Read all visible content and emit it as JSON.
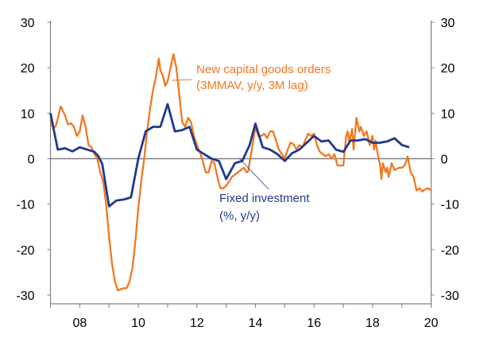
{
  "chart_data": {
    "type": "line",
    "title": "",
    "xlabel": "",
    "ylabel": "",
    "xlim": [
      2007,
      2020
    ],
    "ylim": [
      -30,
      30
    ],
    "y_right_axis": {
      "ylim": [
        -30,
        30
      ]
    },
    "grid": false,
    "x_ticks": [
      2008,
      2010,
      2012,
      2014,
      2016,
      2018,
      2020
    ],
    "x_tick_labels": [
      "08",
      "10",
      "12",
      "14",
      "16",
      "18",
      "20"
    ],
    "y_ticks": [
      -30,
      -20,
      -10,
      0,
      10,
      20,
      30
    ],
    "y_tick_labels": [
      "-30",
      "-20",
      "-10",
      "0",
      "10",
      "20",
      "30"
    ],
    "colors": {
      "orders": "#F07820",
      "investment": "#1F3A8C",
      "zero_line": "#808080"
    },
    "series": [
      {
        "name": "New capital goods orders (3MMAV, y/y, 3M lag)",
        "label_lines": [
          "New capital goods orders",
          "(3MMAV, y/y, 3M lag)"
        ],
        "color": "#F07820",
        "x": [
          2007.0,
          2007.1,
          2007.2,
          2007.35,
          2007.5,
          2007.6,
          2007.7,
          2007.8,
          2007.9,
          2008.0,
          2008.1,
          2008.2,
          2008.3,
          2008.4,
          2008.5,
          2008.6,
          2008.7,
          2008.8,
          2008.9,
          2009.0,
          2009.1,
          2009.2,
          2009.3,
          2009.4,
          2009.5,
          2009.6,
          2009.7,
          2009.8,
          2009.9,
          2010.0,
          2010.1,
          2010.2,
          2010.3,
          2010.4,
          2010.5,
          2010.6,
          2010.7,
          2010.75,
          2010.85,
          2010.92,
          2011.0,
          2011.1,
          2011.2,
          2011.3,
          2011.4,
          2011.5,
          2011.6,
          2011.7,
          2011.8,
          2011.9,
          2012.0,
          2012.1,
          2012.2,
          2012.3,
          2012.4,
          2012.5,
          2012.6,
          2012.7,
          2012.8,
          2012.9,
          2013.0,
          2013.2,
          2013.4,
          2013.5,
          2013.6,
          2013.7,
          2013.75,
          2013.85,
          2013.9,
          2014.0,
          2014.1,
          2014.2,
          2014.3,
          2014.4,
          2014.5,
          2014.6,
          2014.7,
          2014.8,
          2014.9,
          2015.0,
          2015.1,
          2015.2,
          2015.3,
          2015.4,
          2015.5,
          2015.6,
          2015.7,
          2015.8,
          2015.9,
          2016.0,
          2016.1,
          2016.2,
          2016.3,
          2016.4,
          2016.5,
          2016.6,
          2016.7,
          2016.8,
          2016.9,
          2017.0,
          2017.1,
          2017.15,
          2017.2,
          2017.3,
          2017.35,
          2017.45,
          2017.55,
          2017.6,
          2017.7,
          2017.8,
          2017.9,
          2018.0,
          2018.05,
          2018.1,
          2018.2,
          2018.25,
          2018.3,
          2018.35,
          2018.45,
          2018.5,
          2018.55,
          2018.65,
          2018.75,
          2018.9,
          2019.0,
          2019.1,
          2019.2,
          2019.3,
          2019.4,
          2019.5,
          2019.6,
          2019.7,
          2019.8,
          2019.9,
          2020.0
        ],
        "values": [
          8.5,
          6.5,
          7.5,
          11.5,
          9.5,
          7.5,
          7.8,
          7,
          5,
          6,
          9.5,
          7,
          3,
          2.5,
          1,
          0,
          -3,
          -5,
          -10,
          -17,
          -23,
          -27,
          -29,
          -28.7,
          -28.5,
          -28.5,
          -27,
          -24,
          -18,
          -11,
          -5,
          0,
          6,
          11,
          15,
          18,
          22,
          19.5,
          18,
          16,
          17,
          20,
          23,
          20,
          14,
          8,
          7,
          9,
          8,
          5,
          3,
          1.5,
          -0.5,
          -3,
          -3,
          -0.5,
          -1,
          -4,
          -6.5,
          -6.5,
          -6,
          -4,
          -3,
          -2.5,
          -2,
          -3,
          -2.8,
          1,
          3,
          7,
          5,
          5,
          5.5,
          4.5,
          6,
          6,
          4,
          2,
          1,
          0,
          2,
          3.5,
          3.2,
          2,
          3,
          2.5,
          4,
          5.5,
          5,
          5.5,
          3,
          1.5,
          1,
          0.5,
          1,
          0,
          1,
          -1.5,
          -1.5,
          -1.5,
          5,
          6,
          3.5,
          6.5,
          2,
          9,
          6,
          7,
          5,
          6,
          3,
          5,
          2,
          4,
          0,
          -1,
          -4.5,
          -1,
          -3,
          -2,
          -4,
          -1,
          -2.5,
          -2,
          -2,
          -1.5,
          0.5,
          -3,
          -4,
          -7,
          -6.5,
          -7.2,
          -6.7,
          -6.5,
          -7
        ]
      },
      {
        "name": "Fixed investment (%, y/y)",
        "label_lines": [
          "Fixed investment",
          "(%, y/y)"
        ],
        "color": "#1F3A8C",
        "x": [
          2007.0,
          2007.25,
          2007.5,
          2007.75,
          2008.0,
          2008.5,
          2008.63,
          2008.77,
          2009.0,
          2009.25,
          2009.5,
          2009.75,
          2010.0,
          2010.25,
          2010.5,
          2010.75,
          2011.0,
          2011.25,
          2011.5,
          2011.75,
          2012.0,
          2012.25,
          2012.5,
          2012.75,
          2013.0,
          2013.3,
          2013.55,
          2013.8,
          2014.0,
          2014.25,
          2014.5,
          2014.75,
          2015.0,
          2015.25,
          2015.5,
          2015.75,
          2016.0,
          2016.25,
          2016.5,
          2016.75,
          2017.0,
          2017.25,
          2017.5,
          2017.75,
          2018.0,
          2018.25,
          2018.5,
          2018.75,
          2019.0,
          2019.25
        ],
        "values": [
          10,
          2,
          2.3,
          1.6,
          2.5,
          1.5,
          0.6,
          -1.2,
          -10.5,
          -9.2,
          -9,
          -8.5,
          0,
          6,
          7,
          7,
          12,
          6,
          6.3,
          7,
          2,
          1,
          0,
          -0.5,
          -4.5,
          -1,
          -0.5,
          3,
          7.7,
          2.5,
          2,
          1,
          -0.5,
          1.2,
          2,
          3.5,
          5,
          3.8,
          4,
          2,
          1.5,
          4,
          4,
          4.3,
          3.5,
          3.5,
          3.8,
          4.5,
          3,
          2.5
        ]
      }
    ]
  }
}
